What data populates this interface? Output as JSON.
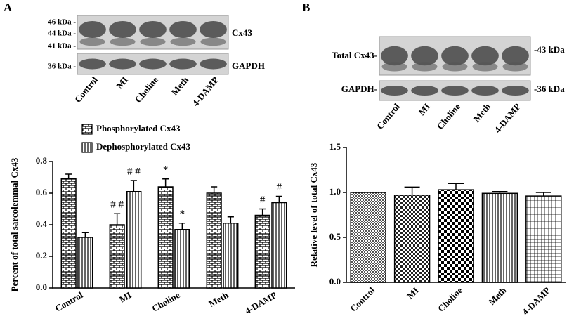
{
  "chart_data": [
    {
      "type": "bar",
      "panel": "A",
      "blot": {
        "markers": [
          "46 kDa -",
          "44 kDa -",
          "41 kDa -",
          "36 kDa -"
        ],
        "bands": [
          "Cx43",
          "GAPDH"
        ],
        "lanes": [
          "Control",
          "MI",
          "Choline",
          "Meth",
          "4-DAMP"
        ]
      },
      "y_label": "Percent of total sarcolemmal Cx43",
      "categories": [
        "Control",
        "MI",
        "Choline",
        "Meth",
        "4-DAMP"
      ],
      "series": [
        {
          "name": "Phosphorylated Cx43",
          "color": "#000000",
          "values": [
            0.69,
            0.4,
            0.64,
            0.6,
            0.46
          ],
          "errors": [
            0.03,
            0.07,
            0.05,
            0.04,
            0.04
          ],
          "markers": [
            null,
            "# #",
            "*",
            null,
            "#"
          ]
        },
        {
          "name": "Dephosphorylated Cx43",
          "color": "#000000",
          "values": [
            0.32,
            0.61,
            0.37,
            0.41,
            0.54
          ],
          "errors": [
            0.03,
            0.07,
            0.04,
            0.04,
            0.04
          ],
          "markers": [
            null,
            "# #",
            "*",
            null,
            "#"
          ]
        }
      ],
      "ylim": [
        0,
        0.8
      ],
      "yticks": [
        {
          "value": 0,
          "label": "0.0"
        },
        0.2,
        0.4,
        0.6,
        0.8
      ],
      "legend": "top-left"
    },
    {
      "type": "bar",
      "panel": "B",
      "blot": {
        "markers": [
          "-43 kDa",
          "-36 kDa"
        ],
        "bands": [
          "Total Cx43-",
          "GAPDH-"
        ],
        "lanes": [
          "Control",
          "MI",
          "Choline",
          "Meth",
          "4-DAMP"
        ]
      },
      "y_label": "Relative level of total Cx43",
      "categories": [
        "Control",
        "MI",
        "Choline",
        "Meth",
        "4-DAMP"
      ],
      "series": [
        {
          "name": null,
          "color": "#000000",
          "values": [
            1.0,
            0.97,
            1.03,
            0.99,
            0.96
          ],
          "errors": [
            null,
            0.09,
            0.07,
            0.02,
            0.04
          ]
        }
      ],
      "ylim": [
        0,
        1.5
      ],
      "yticks": [
        {
          "value": 0,
          "label": "0.0"
        },
        0.5,
        {
          "value": 1,
          "label": "1.0"
        },
        1.5
      ]
    }
  ]
}
